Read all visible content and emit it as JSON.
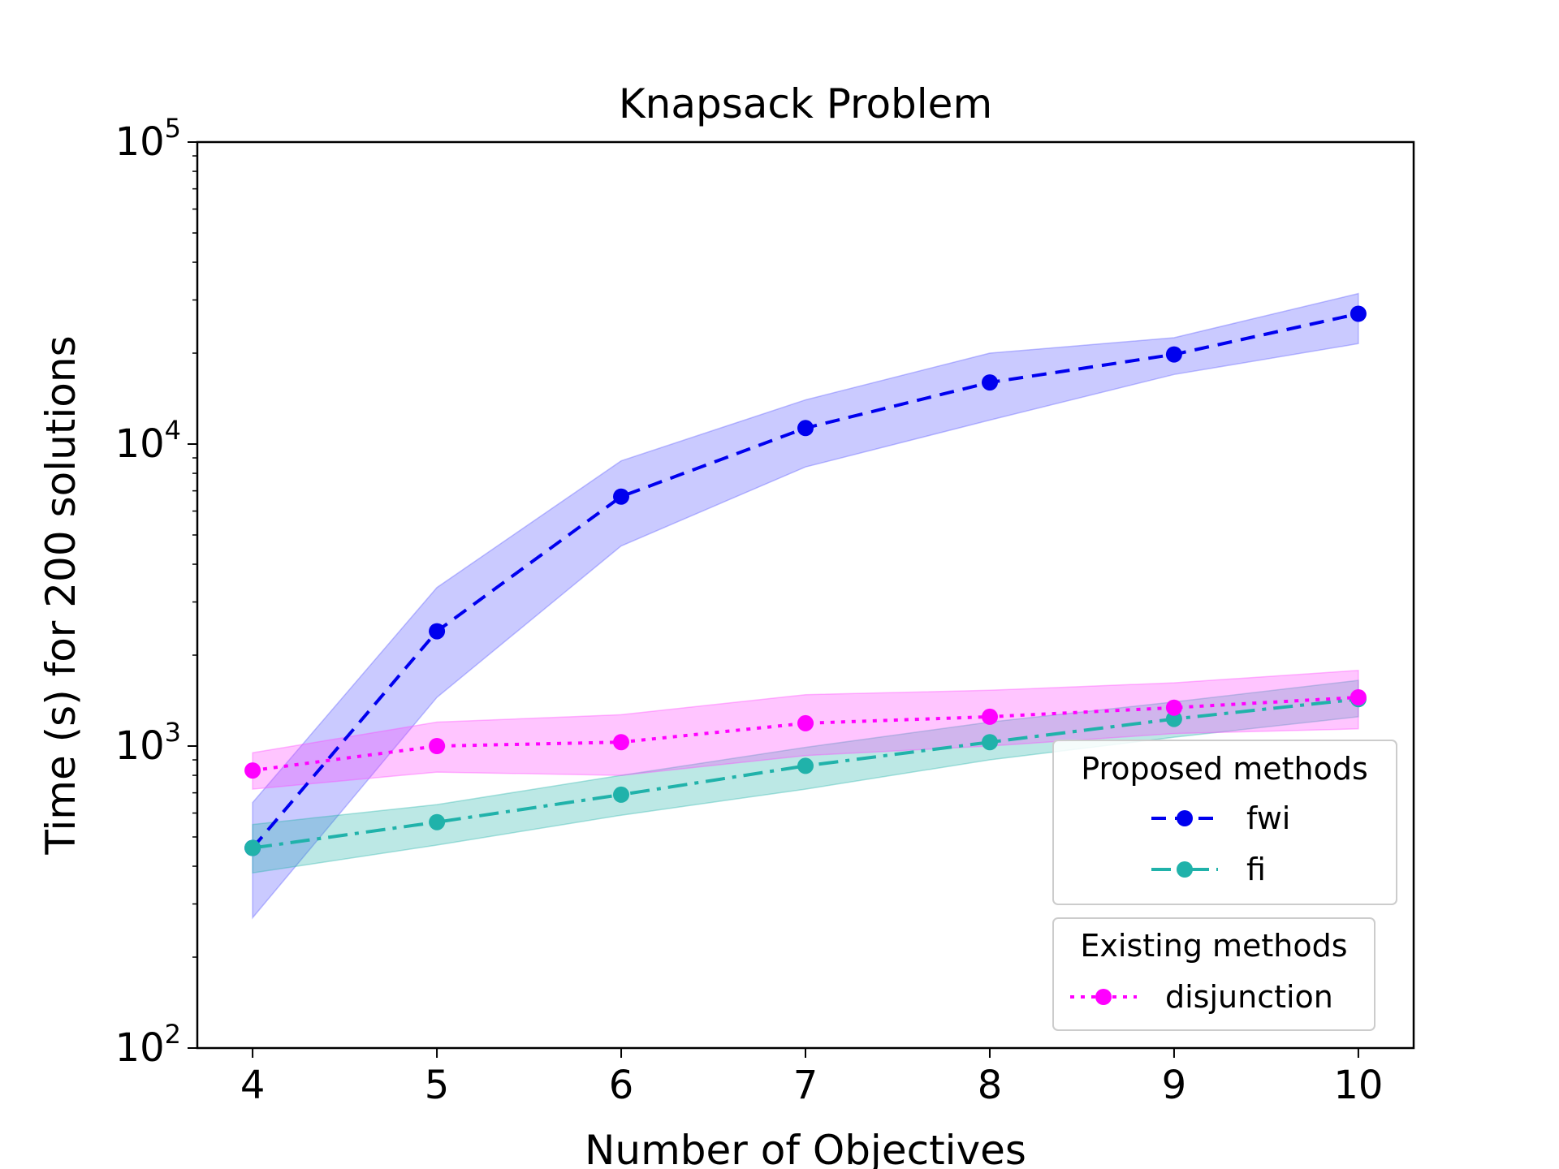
{
  "chart_data": {
    "type": "line",
    "title": "Knapsack Problem",
    "xlabel": "Number of Objectives",
    "ylabel": "Time (s) for 200 solutions",
    "yscale": "log",
    "ylim": [
      100,
      100000
    ],
    "xlim": [
      3.7,
      10.3
    ],
    "x": [
      4,
      5,
      6,
      7,
      8,
      9,
      10
    ],
    "xticks": [
      4,
      5,
      6,
      7,
      8,
      9,
      10
    ],
    "yticks": [
      {
        "value": 100,
        "base": "10",
        "exp": "2"
      },
      {
        "value": 1000,
        "base": "10",
        "exp": "3"
      },
      {
        "value": 10000,
        "base": "10",
        "exp": "4"
      },
      {
        "value": 100000,
        "base": "10",
        "exp": "5"
      }
    ],
    "series": [
      {
        "key": "fwi",
        "name": "fwi",
        "group": "proposed",
        "color": "#0000ee",
        "band_color": "#5050ff",
        "dash": "18,11",
        "values": [
          460,
          2400,
          6700,
          11300,
          16000,
          19800,
          27000
        ],
        "upper": [
          650,
          3350,
          8800,
          14000,
          20000,
          22500,
          31500
        ],
        "lower": [
          270,
          1450,
          4600,
          8400,
          12000,
          17000,
          21500
        ]
      },
      {
        "key": "fi",
        "name": "fi",
        "group": "proposed",
        "color": "#20b2aa",
        "band_color": "#20b2aa",
        "dash": "24,9,5,9",
        "values": [
          460,
          560,
          690,
          860,
          1030,
          1230,
          1430
        ],
        "upper": [
          550,
          640,
          800,
          990,
          1200,
          1400,
          1650
        ],
        "lower": [
          380,
          470,
          590,
          720,
          900,
          1070,
          1250
        ]
      },
      {
        "key": "disjunction",
        "name": "disjunction",
        "group": "existing",
        "color": "#ff00ff",
        "band_color": "#ff40ff",
        "dash": "5,8",
        "values": [
          830,
          1000,
          1030,
          1190,
          1250,
          1340,
          1450
        ],
        "upper": [
          950,
          1200,
          1270,
          1480,
          1530,
          1620,
          1780
        ],
        "lower": [
          720,
          820,
          800,
          930,
          1000,
          1100,
          1140
        ]
      }
    ],
    "legend": {
      "location": "lower-right",
      "groups": [
        {
          "title": "Proposed methods",
          "entries": [
            "fwi",
            "fi"
          ]
        },
        {
          "title": "Existing methods",
          "entries": [
            "disjunction"
          ]
        }
      ]
    }
  }
}
